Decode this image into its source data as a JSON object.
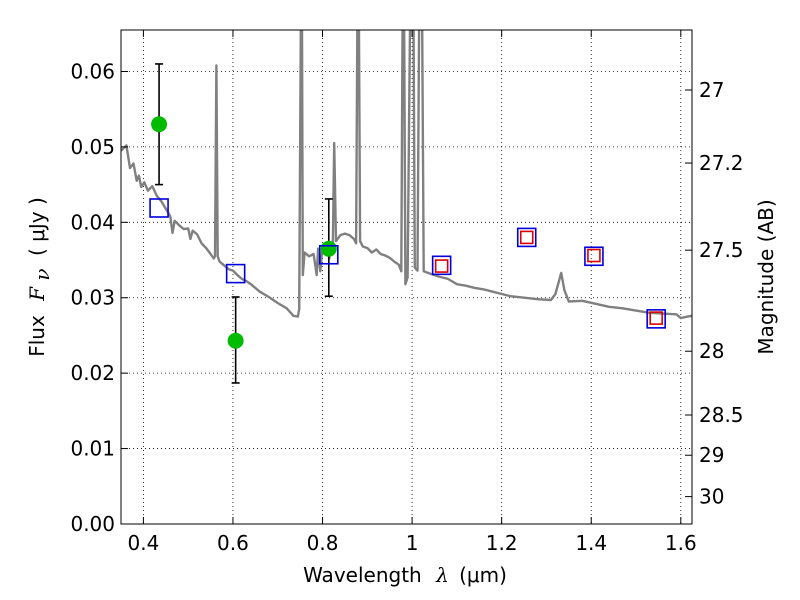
{
  "chart_data": {
    "type": "scatter",
    "x_axis": {
      "label_prefix": "Wavelength",
      "label_symbol": "λ",
      "label_units": "(μm)",
      "range": [
        0.35,
        1.625
      ],
      "ticks": [
        0.4,
        0.6,
        0.8,
        1.0,
        1.2,
        1.4,
        1.6
      ],
      "tick_labels": [
        "0.4",
        "0.6",
        "0.8",
        "1",
        "1.2",
        "1.4",
        "1.6"
      ]
    },
    "y_axis": {
      "label_prefix": "Flux",
      "label_symbol": "F",
      "label_subscript": "ν",
      "label_units": "( μJy )",
      "range": [
        0.0,
        0.0655
      ],
      "ticks": [
        0.0,
        0.01,
        0.02,
        0.03,
        0.04,
        0.05,
        0.06
      ],
      "tick_labels": [
        "0.00",
        "0.01",
        "0.02",
        "0.03",
        "0.04",
        "0.05",
        "0.06"
      ]
    },
    "y2_axis": {
      "label": "Magnitude (AB)",
      "ticks": [
        {
          "mag": 27.0,
          "label": "27"
        },
        {
          "mag": 27.2,
          "label": "27.2"
        },
        {
          "mag": 27.5,
          "label": "27.5"
        },
        {
          "mag": 28.0,
          "label": "28"
        },
        {
          "mag": 28.5,
          "label": "28.5"
        },
        {
          "mag": 29.0,
          "label": "29"
        },
        {
          "mag": 30.0,
          "label": "30"
        }
      ]
    },
    "grid": true,
    "series": [
      {
        "name": "model_spectrum",
        "kind": "line",
        "color": "#808080",
        "points": [
          [
            0.35,
            0.0495
          ],
          [
            0.362,
            0.0502
          ],
          [
            0.37,
            0.0472
          ],
          [
            0.378,
            0.0478
          ],
          [
            0.385,
            0.0455
          ],
          [
            0.39,
            0.0462
          ],
          [
            0.395,
            0.0447
          ],
          [
            0.402,
            0.0453
          ],
          [
            0.41,
            0.0442
          ],
          [
            0.42,
            0.0448
          ],
          [
            0.43,
            0.0435
          ],
          [
            0.44,
            0.0428
          ],
          [
            0.45,
            0.0418
          ],
          [
            0.46,
            0.0408
          ],
          [
            0.465,
            0.0386
          ],
          [
            0.47,
            0.0402
          ],
          [
            0.48,
            0.0396
          ],
          [
            0.49,
            0.0391
          ],
          [
            0.5,
            0.0392
          ],
          [
            0.505,
            0.0378
          ],
          [
            0.51,
            0.0389
          ],
          [
            0.52,
            0.0384
          ],
          [
            0.53,
            0.0372
          ],
          [
            0.54,
            0.0366
          ],
          [
            0.55,
            0.0358
          ],
          [
            0.557,
            0.0352
          ],
          [
            0.56,
            0.0355
          ],
          [
            0.563,
            0.0608
          ],
          [
            0.566,
            0.0355
          ],
          [
            0.57,
            0.0348
          ],
          [
            0.58,
            0.0343
          ],
          [
            0.59,
            0.0338
          ],
          [
            0.6,
            0.0336
          ],
          [
            0.61,
            0.033
          ],
          [
            0.62,
            0.0325
          ],
          [
            0.63,
            0.0322
          ],
          [
            0.64,
            0.0318
          ],
          [
            0.66,
            0.0308
          ],
          [
            0.68,
            0.0301
          ],
          [
            0.7,
            0.0293
          ],
          [
            0.72,
            0.0286
          ],
          [
            0.735,
            0.0276
          ],
          [
            0.745,
            0.0275
          ],
          [
            0.748,
            0.0285
          ],
          [
            0.752,
            0.07
          ],
          [
            0.754,
            0.07
          ],
          [
            0.756,
            0.033
          ],
          [
            0.76,
            0.036
          ],
          [
            0.77,
            0.0355
          ],
          [
            0.78,
            0.0358
          ],
          [
            0.787,
            0.033
          ],
          [
            0.79,
            0.0365
          ],
          [
            0.795,
            0.0335
          ],
          [
            0.8,
            0.0368
          ],
          [
            0.805,
            0.036
          ],
          [
            0.81,
            0.037
          ],
          [
            0.815,
            0.0352
          ],
          [
            0.82,
            0.0368
          ],
          [
            0.823,
            0.0365
          ],
          [
            0.826,
            0.0505
          ],
          [
            0.83,
            0.0375
          ],
          [
            0.84,
            0.0383
          ],
          [
            0.85,
            0.0385
          ],
          [
            0.86,
            0.0383
          ],
          [
            0.87,
            0.0378
          ],
          [
            0.875,
            0.0372
          ],
          [
            0.878,
            0.07
          ],
          [
            0.881,
            0.07
          ],
          [
            0.884,
            0.0375
          ],
          [
            0.89,
            0.0368
          ],
          [
            0.9,
            0.0366
          ],
          [
            0.91,
            0.036
          ],
          [
            0.92,
            0.0364
          ],
          [
            0.93,
            0.0358
          ],
          [
            0.94,
            0.0356
          ],
          [
            0.95,
            0.0353
          ],
          [
            0.96,
            0.0348
          ],
          [
            0.97,
            0.0344
          ],
          [
            0.976,
            0.0335
          ],
          [
            0.979,
            0.07
          ],
          [
            0.982,
            0.07
          ],
          [
            0.985,
            0.0318
          ],
          [
            0.99,
            0.0327
          ],
          [
            0.996,
            0.07
          ],
          [
            1.003,
            0.07
          ],
          [
            1.006,
            0.034
          ],
          [
            1.012,
            0.0336
          ],
          [
            1.016,
            0.07
          ],
          [
            1.022,
            0.07
          ],
          [
            1.026,
            0.0335
          ],
          [
            1.04,
            0.0332
          ],
          [
            1.06,
            0.0328
          ],
          [
            1.08,
            0.0325
          ],
          [
            1.1,
            0.0318
          ],
          [
            1.12,
            0.0316
          ],
          [
            1.14,
            0.0313
          ],
          [
            1.16,
            0.0311
          ],
          [
            1.18,
            0.0308
          ],
          [
            1.2,
            0.0305
          ],
          [
            1.22,
            0.0302
          ],
          [
            1.25,
            0.03
          ],
          [
            1.28,
            0.0298
          ],
          [
            1.31,
            0.0297
          ],
          [
            1.32,
            0.0305
          ],
          [
            1.333,
            0.0333
          ],
          [
            1.34,
            0.031
          ],
          [
            1.35,
            0.0295
          ],
          [
            1.38,
            0.0296
          ],
          [
            1.41,
            0.0292
          ],
          [
            1.44,
            0.0288
          ],
          [
            1.47,
            0.0286
          ],
          [
            1.5,
            0.0283
          ],
          [
            1.53,
            0.028
          ],
          [
            1.56,
            0.0279
          ],
          [
            1.59,
            0.0278
          ],
          [
            1.6,
            0.0273
          ],
          [
            1.615,
            0.0275
          ],
          [
            1.625,
            0.0276
          ]
        ]
      },
      {
        "name": "observed_flux",
        "kind": "scatter_errorbar",
        "color": "#00bb00",
        "points": [
          {
            "x": 0.435,
            "y": 0.053,
            "yerr": [
              0.045,
              0.061
            ]
          },
          {
            "x": 0.606,
            "y": 0.0243,
            "yerr": [
              0.0187,
              0.0301
            ]
          },
          {
            "x": 0.814,
            "y": 0.0365,
            "yerr": [
              0.0302,
              0.0431
            ]
          }
        ]
      },
      {
        "name": "model_photometry",
        "kind": "open_square",
        "color": "#0000dd",
        "points": [
          [
            0.435,
            0.0419
          ],
          [
            0.606,
            0.0332
          ],
          [
            0.814,
            0.0357
          ],
          [
            1.066,
            0.0343
          ],
          [
            1.256,
            0.038
          ],
          [
            1.406,
            0.0355
          ],
          [
            1.545,
            0.0272
          ]
        ]
      },
      {
        "name": "observed_ir",
        "kind": "open_square",
        "color": "#dd0000",
        "points": [
          [
            1.066,
            0.0342
          ],
          [
            1.256,
            0.038
          ],
          [
            1.406,
            0.0356
          ],
          [
            1.545,
            0.0273
          ]
        ]
      }
    ]
  }
}
